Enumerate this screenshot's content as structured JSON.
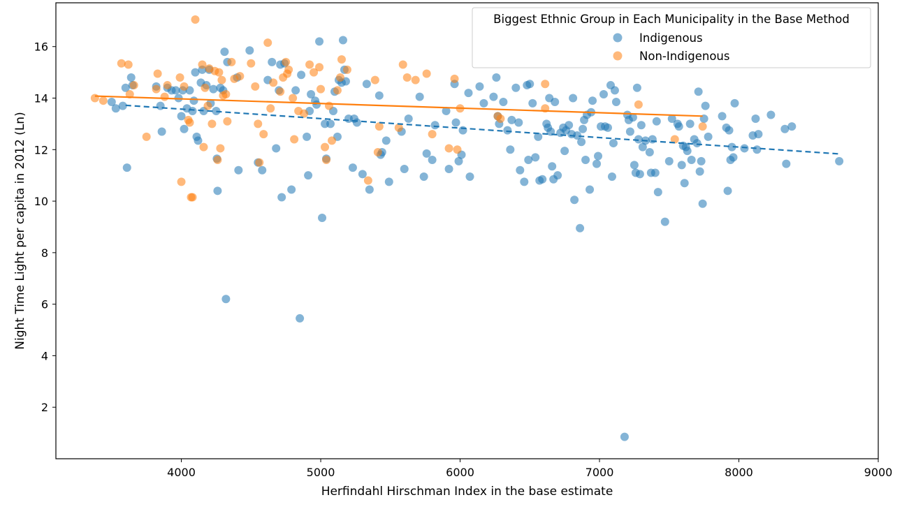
{
  "chart_data": {
    "type": "scatter",
    "title": "",
    "xlabel": "Herfindahl Hirschman Index in the base estimate",
    "ylabel": "Night Time Light per capita in 2012 (Ln)",
    "xlim": [
      3100,
      9000
    ],
    "ylim": [
      0,
      17.7
    ],
    "xticks": [
      4000,
      5000,
      6000,
      7000,
      8000,
      9000
    ],
    "yticks": [
      2,
      4,
      6,
      8,
      10,
      12,
      14,
      16
    ],
    "grid": false,
    "legend": {
      "title": "Biggest Ethnic Group in Each Municipality in the Base Method",
      "position": "top-right"
    },
    "series": [
      {
        "name": "Indigenous",
        "color": "#1f77b4",
        "trend_line": {
          "x": [
            3600,
            8730
          ],
          "y": [
            13.72,
            11.83
          ],
          "style": "dashed"
        },
        "points": [
          [
            3500,
            13.85
          ],
          [
            3530,
            13.6
          ],
          [
            3580,
            13.7
          ],
          [
            3600,
            14.4
          ],
          [
            3610,
            11.3
          ],
          [
            3640,
            14.8
          ],
          [
            3650,
            14.5
          ],
          [
            3820,
            14.45
          ],
          [
            3850,
            13.7
          ],
          [
            3860,
            12.7
          ],
          [
            3900,
            14.4
          ],
          [
            3930,
            14.3
          ],
          [
            3960,
            14.3
          ],
          [
            3980,
            14.0
          ],
          [
            4000,
            13.3
          ],
          [
            4010,
            14.3
          ],
          [
            4020,
            12.8
          ],
          [
            4040,
            13.6
          ],
          [
            4060,
            14.3
          ],
          [
            4080,
            13.5
          ],
          [
            4090,
            13.9
          ],
          [
            4100,
            15.0
          ],
          [
            4110,
            12.5
          ],
          [
            4120,
            12.35
          ],
          [
            4140,
            14.6
          ],
          [
            4150,
            15.1
          ],
          [
            4160,
            13.5
          ],
          [
            4180,
            14.5
          ],
          [
            4200,
            15.1
          ],
          [
            4210,
            13.8
          ],
          [
            4230,
            14.35
          ],
          [
            4250,
            13.5
          ],
          [
            4255,
            11.65
          ],
          [
            4260,
            10.4
          ],
          [
            4280,
            14.4
          ],
          [
            4300,
            14.3
          ],
          [
            4310,
            15.8
          ],
          [
            4320,
            6.2
          ],
          [
            4330,
            15.4
          ],
          [
            4400,
            14.8
          ],
          [
            4410,
            11.2
          ],
          [
            4490,
            15.85
          ],
          [
            4550,
            11.5
          ],
          [
            4580,
            11.2
          ],
          [
            4620,
            14.7
          ],
          [
            4650,
            15.4
          ],
          [
            4680,
            12.05
          ],
          [
            4700,
            14.3
          ],
          [
            4710,
            15.3
          ],
          [
            4720,
            10.15
          ],
          [
            4740,
            15.35
          ],
          [
            4790,
            10.45
          ],
          [
            4820,
            14.3
          ],
          [
            4850,
            5.45
          ],
          [
            4860,
            14.9
          ],
          [
            4900,
            12.5
          ],
          [
            4910,
            11.0
          ],
          [
            4920,
            13.5
          ],
          [
            4930,
            14.15
          ],
          [
            4960,
            13.9
          ],
          [
            4970,
            13.75
          ],
          [
            4990,
            16.2
          ],
          [
            5010,
            9.35
          ],
          [
            5030,
            13.0
          ],
          [
            5040,
            11.65
          ],
          [
            5070,
            13.0
          ],
          [
            5090,
            13.5
          ],
          [
            5100,
            14.25
          ],
          [
            5120,
            12.5
          ],
          [
            5130,
            14.7
          ],
          [
            5150,
            14.6
          ],
          [
            5160,
            16.25
          ],
          [
            5170,
            15.1
          ],
          [
            5180,
            14.65
          ],
          [
            5200,
            13.2
          ],
          [
            5230,
            11.3
          ],
          [
            5240,
            13.2
          ],
          [
            5260,
            13.05
          ],
          [
            5300,
            11.05
          ],
          [
            5330,
            14.55
          ],
          [
            5350,
            10.45
          ],
          [
            5420,
            14.1
          ],
          [
            5430,
            11.8
          ],
          [
            5440,
            11.9
          ],
          [
            5470,
            12.35
          ],
          [
            5490,
            10.75
          ],
          [
            5580,
            12.7
          ],
          [
            5600,
            11.25
          ],
          [
            5630,
            13.2
          ],
          [
            5710,
            14.05
          ],
          [
            5740,
            10.95
          ],
          [
            5760,
            11.85
          ],
          [
            5800,
            11.6
          ],
          [
            5820,
            12.95
          ],
          [
            5900,
            13.5
          ],
          [
            5920,
            11.25
          ],
          [
            5960,
            14.55
          ],
          [
            5970,
            13.05
          ],
          [
            5990,
            11.55
          ],
          [
            6010,
            11.8
          ],
          [
            6020,
            12.75
          ],
          [
            6060,
            14.2
          ],
          [
            6070,
            10.95
          ],
          [
            6140,
            14.45
          ],
          [
            6170,
            13.8
          ],
          [
            6240,
            14.05
          ],
          [
            6260,
            14.8
          ],
          [
            6270,
            13.3
          ],
          [
            6280,
            13.0
          ],
          [
            6310,
            13.85
          ],
          [
            6340,
            12.75
          ],
          [
            6360,
            12.0
          ],
          [
            6370,
            13.15
          ],
          [
            6400,
            14.4
          ],
          [
            6420,
            13.05
          ],
          [
            6430,
            11.2
          ],
          [
            6460,
            10.75
          ],
          [
            6480,
            14.5
          ],
          [
            6490,
            11.6
          ],
          [
            6500,
            14.55
          ],
          [
            6520,
            13.8
          ],
          [
            6540,
            11.7
          ],
          [
            6560,
            12.5
          ],
          [
            6570,
            10.8
          ],
          [
            6590,
            10.85
          ],
          [
            6620,
            13.0
          ],
          [
            6630,
            12.85
          ],
          [
            6640,
            14.0
          ],
          [
            6650,
            12.7
          ],
          [
            6660,
            11.35
          ],
          [
            6670,
            10.85
          ],
          [
            6680,
            13.85
          ],
          [
            6700,
            11.0
          ],
          [
            6720,
            12.65
          ],
          [
            6740,
            12.85
          ],
          [
            6750,
            11.95
          ],
          [
            6760,
            12.75
          ],
          [
            6780,
            12.95
          ],
          [
            6800,
            12.6
          ],
          [
            6810,
            14.0
          ],
          [
            6820,
            10.05
          ],
          [
            6840,
            12.55
          ],
          [
            6860,
            8.95
          ],
          [
            6870,
            12.3
          ],
          [
            6880,
            12.8
          ],
          [
            6890,
            13.15
          ],
          [
            6900,
            11.6
          ],
          [
            6910,
            13.35
          ],
          [
            6930,
            10.45
          ],
          [
            6940,
            13.45
          ],
          [
            6950,
            13.9
          ],
          [
            6980,
            11.45
          ],
          [
            6990,
            11.75
          ],
          [
            7010,
            12.9
          ],
          [
            7030,
            14.15
          ],
          [
            7040,
            12.9
          ],
          [
            7060,
            12.85
          ],
          [
            7080,
            14.5
          ],
          [
            7090,
            10.95
          ],
          [
            7100,
            12.25
          ],
          [
            7110,
            14.3
          ],
          [
            7120,
            13.85
          ],
          [
            7180,
            0.85
          ],
          [
            7200,
            13.35
          ],
          [
            7210,
            13.15
          ],
          [
            7220,
            12.7
          ],
          [
            7240,
            13.25
          ],
          [
            7250,
            11.4
          ],
          [
            7260,
            11.1
          ],
          [
            7270,
            14.4
          ],
          [
            7280,
            12.4
          ],
          [
            7290,
            11.05
          ],
          [
            7300,
            12.95
          ],
          [
            7310,
            12.1
          ],
          [
            7330,
            12.35
          ],
          [
            7360,
            11.9
          ],
          [
            7370,
            11.1
          ],
          [
            7380,
            12.4
          ],
          [
            7400,
            11.1
          ],
          [
            7410,
            13.1
          ],
          [
            7420,
            10.35
          ],
          [
            7470,
            9.2
          ],
          [
            7500,
            11.55
          ],
          [
            7520,
            13.2
          ],
          [
            7560,
            13.0
          ],
          [
            7570,
            12.9
          ],
          [
            7590,
            11.4
          ],
          [
            7600,
            12.15
          ],
          [
            7610,
            10.7
          ],
          [
            7620,
            12.1
          ],
          [
            7630,
            11.95
          ],
          [
            7650,
            13.0
          ],
          [
            7660,
            11.6
          ],
          [
            7680,
            12.4
          ],
          [
            7700,
            12.25
          ],
          [
            7710,
            14.25
          ],
          [
            7720,
            11.15
          ],
          [
            7730,
            11.55
          ],
          [
            7740,
            9.9
          ],
          [
            7750,
            13.2
          ],
          [
            7760,
            13.7
          ],
          [
            7780,
            12.5
          ],
          [
            7880,
            13.3
          ],
          [
            7910,
            12.85
          ],
          [
            7920,
            10.4
          ],
          [
            7930,
            12.75
          ],
          [
            7940,
            11.6
          ],
          [
            7950,
            12.1
          ],
          [
            7960,
            11.7
          ],
          [
            7970,
            13.8
          ],
          [
            8040,
            12.05
          ],
          [
            8100,
            12.55
          ],
          [
            8120,
            13.2
          ],
          [
            8130,
            12.0
          ],
          [
            8140,
            12.6
          ],
          [
            8230,
            13.35
          ],
          [
            8330,
            12.8
          ],
          [
            8340,
            11.45
          ],
          [
            8380,
            12.9
          ],
          [
            8720,
            11.55
          ]
        ]
      },
      {
        "name": "Non-Indigenous",
        "color": "#ff7f0e",
        "trend_line": {
          "x": [
            3380,
            7740
          ],
          "y": [
            14.08,
            13.3
          ],
          "style": "solid"
        },
        "points": [
          [
            3380,
            14.0
          ],
          [
            3440,
            13.9
          ],
          [
            3570,
            15.35
          ],
          [
            3620,
            15.3
          ],
          [
            3630,
            14.15
          ],
          [
            3660,
            14.5
          ],
          [
            3750,
            12.5
          ],
          [
            3820,
            14.35
          ],
          [
            3830,
            14.95
          ],
          [
            3880,
            14.05
          ],
          [
            3900,
            14.5
          ],
          [
            3990,
            14.8
          ],
          [
            4000,
            10.75
          ],
          [
            4020,
            14.45
          ],
          [
            4050,
            13.15
          ],
          [
            4060,
            13.05
          ],
          [
            4070,
            10.15
          ],
          [
            4080,
            10.15
          ],
          [
            4100,
            17.05
          ],
          [
            4150,
            15.3
          ],
          [
            4160,
            12.1
          ],
          [
            4170,
            14.4
          ],
          [
            4190,
            13.7
          ],
          [
            4200,
            15.15
          ],
          [
            4220,
            13.0
          ],
          [
            4240,
            15.05
          ],
          [
            4260,
            11.6
          ],
          [
            4270,
            15.0
          ],
          [
            4280,
            12.05
          ],
          [
            4290,
            14.7
          ],
          [
            4300,
            14.1
          ],
          [
            4320,
            14.15
          ],
          [
            4330,
            13.1
          ],
          [
            4360,
            15.4
          ],
          [
            4380,
            14.75
          ],
          [
            4420,
            14.85
          ],
          [
            4500,
            15.35
          ],
          [
            4530,
            14.45
          ],
          [
            4550,
            13.0
          ],
          [
            4560,
            11.5
          ],
          [
            4590,
            12.6
          ],
          [
            4620,
            16.15
          ],
          [
            4640,
            13.6
          ],
          [
            4660,
            14.6
          ],
          [
            4710,
            14.25
          ],
          [
            4730,
            14.8
          ],
          [
            4750,
            15.4
          ],
          [
            4760,
            14.95
          ],
          [
            4770,
            15.1
          ],
          [
            4800,
            14.0
          ],
          [
            4810,
            12.4
          ],
          [
            4840,
            13.5
          ],
          [
            4880,
            13.4
          ],
          [
            4920,
            15.3
          ],
          [
            4950,
            15.0
          ],
          [
            4990,
            15.2
          ],
          [
            5000,
            14.35
          ],
          [
            5030,
            12.1
          ],
          [
            5040,
            11.6
          ],
          [
            5060,
            13.7
          ],
          [
            5080,
            12.35
          ],
          [
            5120,
            14.3
          ],
          [
            5140,
            14.8
          ],
          [
            5150,
            15.5
          ],
          [
            5190,
            15.1
          ],
          [
            5340,
            10.8
          ],
          [
            5390,
            14.7
          ],
          [
            5410,
            11.9
          ],
          [
            5420,
            12.9
          ],
          [
            5560,
            12.85
          ],
          [
            5590,
            15.3
          ],
          [
            5620,
            14.8
          ],
          [
            5680,
            14.7
          ],
          [
            5760,
            14.95
          ],
          [
            5800,
            12.6
          ],
          [
            5920,
            12.05
          ],
          [
            5960,
            14.75
          ],
          [
            5980,
            12.0
          ],
          [
            6000,
            13.6
          ],
          [
            6270,
            13.3
          ],
          [
            6290,
            13.2
          ],
          [
            6610,
            14.55
          ],
          [
            6610,
            13.6
          ],
          [
            7280,
            13.75
          ],
          [
            7540,
            12.4
          ],
          [
            7740,
            12.9
          ]
        ]
      }
    ]
  }
}
